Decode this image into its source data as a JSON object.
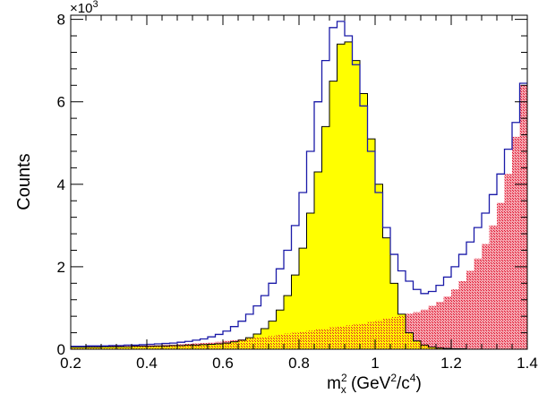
{
  "chart_data": {
    "type": "bar",
    "style": "stacked-histogram",
    "xlabel_base": "m",
    "xlabel_sup": "2",
    "xlabel_sub": "x",
    "xlabel_unit_open": "(GeV",
    "xlabel_unit_sup1": "2",
    "xlabel_unit_mid": "/c",
    "xlabel_unit_sup2": "4",
    "xlabel_unit_close": ")",
    "ylabel": "Counts",
    "y_multiplier_base": "×10",
    "y_multiplier_exp": "3",
    "xlim": [
      0.2,
      1.4
    ],
    "ylim": [
      0,
      8.1
    ],
    "x_ticks": [
      "0.2",
      "0.4",
      "0.6",
      "0.8",
      "1",
      "1.2",
      "1.4"
    ],
    "x_tick_values": [
      0.2,
      0.4,
      0.6,
      0.8,
      1.0,
      1.2,
      1.4
    ],
    "y_ticks": [
      "0",
      "2",
      "4",
      "6",
      "8"
    ],
    "y_tick_values": [
      0,
      2,
      4,
      6,
      8
    ],
    "bin_width": 0.02,
    "bin_starts": [
      0.2,
      0.22,
      0.24,
      0.26,
      0.28,
      0.3,
      0.32,
      0.34,
      0.36,
      0.38,
      0.4,
      0.42,
      0.44,
      0.46,
      0.48,
      0.5,
      0.52,
      0.54,
      0.56,
      0.58,
      0.6,
      0.62,
      0.64,
      0.66,
      0.68,
      0.7,
      0.72,
      0.74,
      0.76,
      0.78,
      0.8,
      0.82,
      0.84,
      0.86,
      0.88,
      0.9,
      0.92,
      0.94,
      0.96,
      0.98,
      1.0,
      1.02,
      1.04,
      1.06,
      1.08,
      1.1,
      1.12,
      1.14,
      1.16,
      1.18,
      1.2,
      1.22,
      1.24,
      1.26,
      1.28,
      1.3,
      1.32,
      1.34,
      1.36,
      1.38
    ],
    "series": [
      {
        "role": "background (red hatched)",
        "color": "#e8213a",
        "values": [
          0.06,
          0.06,
          0.07,
          0.07,
          0.07,
          0.08,
          0.08,
          0.08,
          0.09,
          0.09,
          0.1,
          0.1,
          0.11,
          0.11,
          0.12,
          0.13,
          0.14,
          0.15,
          0.16,
          0.18,
          0.2,
          0.22,
          0.24,
          0.26,
          0.28,
          0.3,
          0.32,
          0.35,
          0.38,
          0.4,
          0.42,
          0.45,
          0.48,
          0.5,
          0.53,
          0.55,
          0.58,
          0.6,
          0.63,
          0.66,
          0.7,
          0.74,
          0.78,
          0.82,
          0.86,
          0.9,
          0.96,
          1.05,
          1.15,
          1.28,
          1.45,
          1.65,
          1.9,
          2.2,
          2.55,
          3.0,
          3.55,
          4.25,
          5.15,
          6.4
        ]
      },
      {
        "role": "signal (yellow filled)",
        "color": "#ffff00",
        "values": [
          0.05,
          0.05,
          0.05,
          0.05,
          0.06,
          0.06,
          0.06,
          0.06,
          0.07,
          0.07,
          0.07,
          0.08,
          0.08,
          0.09,
          0.09,
          0.1,
          0.1,
          0.11,
          0.12,
          0.13,
          0.15,
          0.18,
          0.22,
          0.28,
          0.37,
          0.5,
          0.68,
          0.95,
          1.3,
          1.8,
          2.45,
          3.3,
          4.3,
          5.4,
          6.5,
          7.4,
          7.45,
          7.0,
          6.2,
          5.1,
          4.0,
          2.7,
          1.6,
          0.85,
          0.4,
          0.2,
          0.1,
          0.05,
          0.03,
          0.02,
          0.01,
          0.01,
          0.0,
          0.0,
          0.0,
          0.0,
          0.0,
          0.0,
          0.0,
          0.0
        ]
      },
      {
        "role": "total (blue outline)",
        "color": "#1a1aa8",
        "values": [
          0.07,
          0.07,
          0.08,
          0.08,
          0.08,
          0.09,
          0.09,
          0.1,
          0.1,
          0.11,
          0.12,
          0.13,
          0.14,
          0.15,
          0.17,
          0.19,
          0.22,
          0.25,
          0.3,
          0.36,
          0.44,
          0.55,
          0.68,
          0.85,
          1.05,
          1.3,
          1.6,
          1.95,
          2.4,
          3.0,
          3.8,
          4.8,
          6.0,
          7.0,
          7.8,
          7.95,
          7.6,
          6.9,
          5.9,
          4.8,
          3.8,
          2.95,
          2.3,
          1.9,
          1.65,
          1.45,
          1.35,
          1.4,
          1.55,
          1.75,
          2.0,
          2.3,
          2.6,
          2.95,
          3.3,
          3.75,
          4.25,
          4.85,
          5.5,
          6.45
        ]
      }
    ]
  }
}
